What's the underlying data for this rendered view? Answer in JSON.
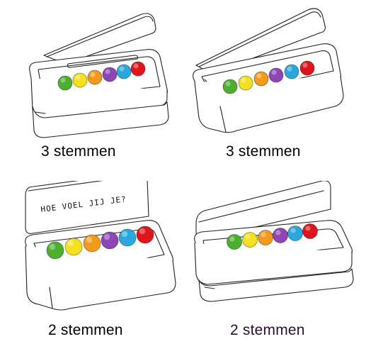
{
  "colors": {
    "ink": "#222222",
    "dot_green": "#4caf2f",
    "dot_yellow": "#f5e020",
    "dot_orange": "#f29a1b",
    "dot_purple": "#8e45b5",
    "dot_blue": "#2ba7e0",
    "dot_red": "#e0141c",
    "caption_dark": "#000000",
    "caption_purple": "#2a0f2e"
  },
  "boxes": [
    {
      "caption": "3 stemmen",
      "lid_text": ""
    },
    {
      "caption": "3 stemmen",
      "lid_text": ""
    },
    {
      "caption": "2 stemmen",
      "lid_text": "HOE VOEL JIJ JE?"
    },
    {
      "caption": "2 stemmen",
      "lid_text": ""
    }
  ]
}
